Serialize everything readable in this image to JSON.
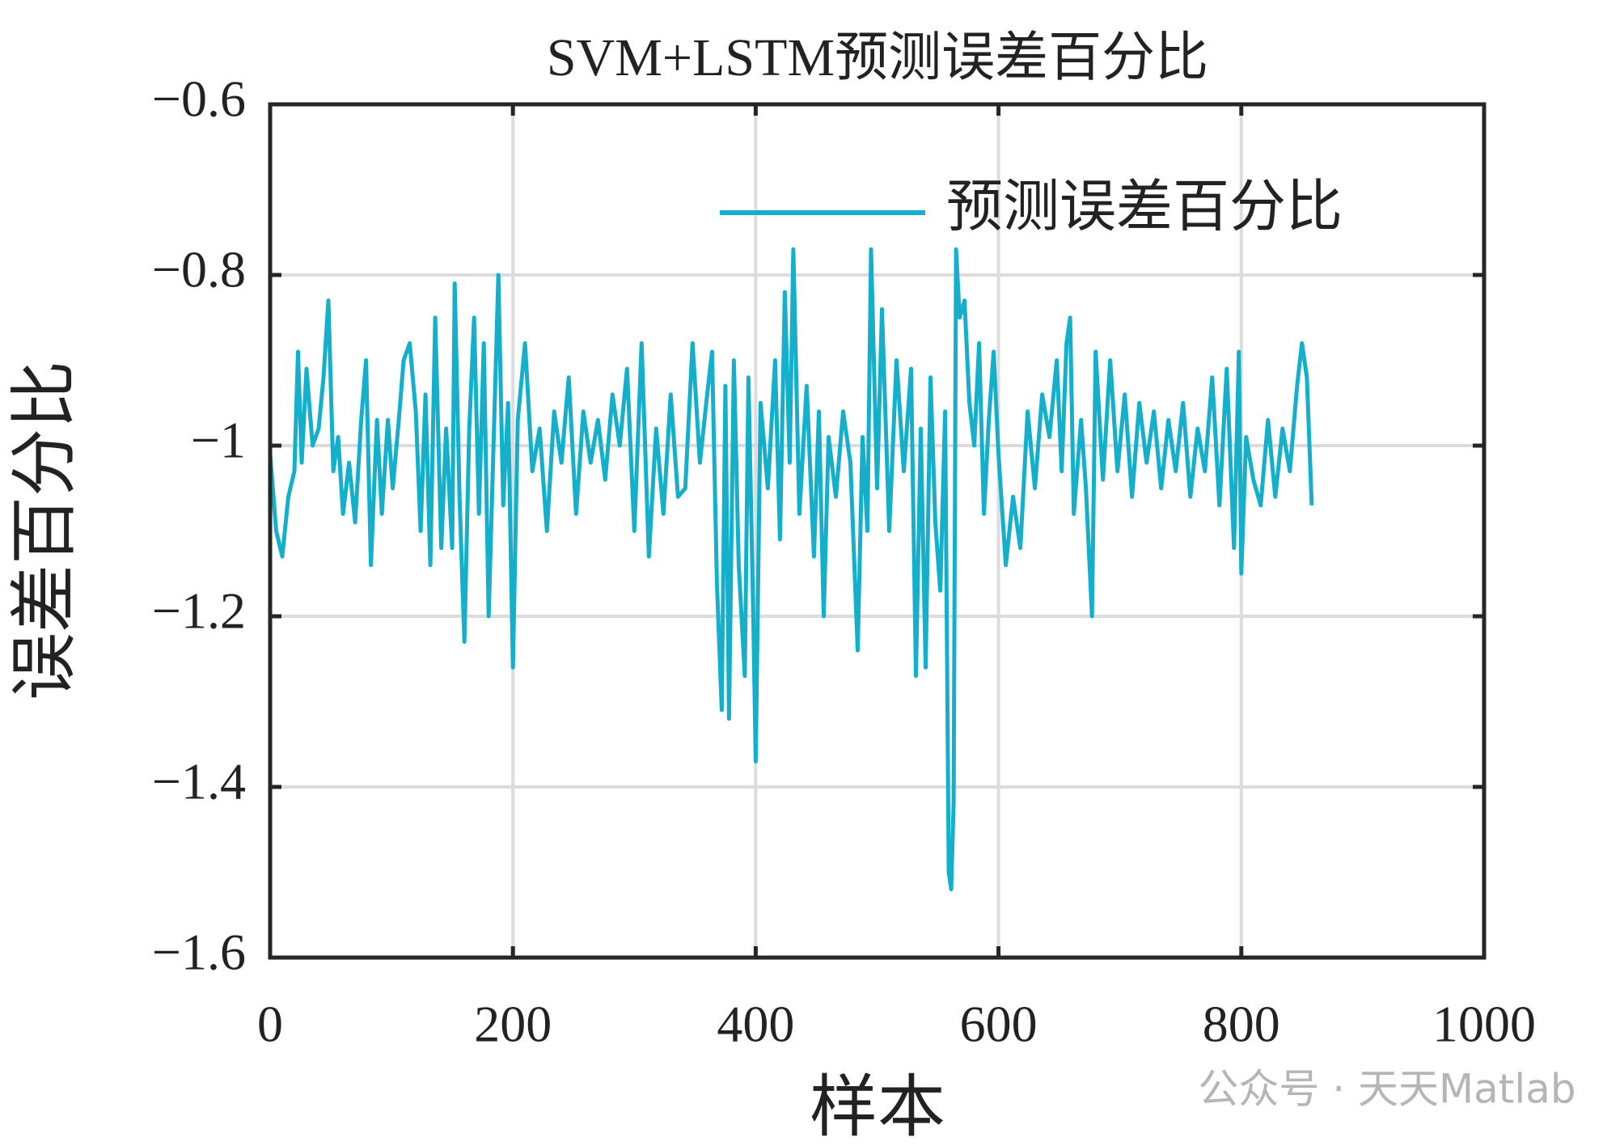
{
  "chart_data": {
    "type": "line",
    "title": "SVM+LSTM预测误差百分比",
    "x_label": "样本",
    "y_label": "误差百分比",
    "watermark": "公众号 · 天天Matlab",
    "legend_position": "upper right",
    "grid": true,
    "xlim": [
      0,
      1000
    ],
    "xticks": [
      0,
      200,
      400,
      600,
      800,
      1000
    ],
    "ylim": [
      -1.6,
      -0.6
    ],
    "yticks": [
      {
        "value": -1.6,
        "label": "−1.6"
      },
      {
        "value": -1.4,
        "label": "−1.4"
      },
      {
        "value": -1.2,
        "label": "−1.2"
      },
      {
        "value": -1,
        "label": "−1"
      },
      {
        "value": -0.8,
        "label": "−0.8"
      },
      {
        "value": -0.6,
        "label": "−0.6"
      }
    ],
    "x": [
      0,
      5,
      10,
      15,
      20,
      23,
      26,
      30,
      35,
      40,
      44,
      48,
      52,
      56,
      60,
      65,
      70,
      75,
      79,
      83,
      88,
      92,
      97,
      101,
      106,
      110,
      115,
      120,
      124,
      128,
      132,
      136,
      141,
      145,
      150,
      152,
      156,
      160,
      164,
      168,
      172,
      176,
      180,
      184,
      188,
      192,
      196,
      200,
      204,
      210,
      216,
      222,
      228,
      234,
      240,
      246,
      252,
      258,
      264,
      270,
      276,
      282,
      288,
      294,
      300,
      306,
      312,
      318,
      324,
      330,
      336,
      342,
      348,
      354,
      360,
      364,
      368,
      372,
      375,
      378,
      382,
      386,
      391,
      394,
      398,
      400,
      404,
      410,
      416,
      420,
      424,
      428,
      431,
      436,
      442,
      448,
      452,
      456,
      460,
      466,
      472,
      478,
      484,
      488,
      492,
      495,
      500,
      504,
      510,
      516,
      522,
      528,
      532,
      536,
      540,
      544,
      548,
      552,
      556,
      559,
      561,
      563,
      565,
      568,
      572,
      576,
      580,
      584,
      588,
      592,
      596,
      600,
      606,
      612,
      618,
      624,
      630,
      636,
      642,
      648,
      652,
      656,
      659,
      662,
      668,
      672,
      677,
      680,
      686,
      692,
      698,
      704,
      710,
      716,
      722,
      728,
      734,
      740,
      746,
      752,
      758,
      764,
      770,
      776,
      782,
      788,
      794,
      798,
      800,
      804,
      810,
      816,
      822,
      828,
      834,
      840,
      846,
      850,
      854,
      858
    ],
    "series": [
      {
        "name": "预测误差百分比",
        "color": "#14b0cb",
        "values": [
          -1.01,
          -1.1,
          -1.13,
          -1.06,
          -1.03,
          -0.89,
          -1.02,
          -0.91,
          -1.0,
          -0.98,
          -0.92,
          -0.83,
          -1.03,
          -0.99,
          -1.08,
          -1.02,
          -1.09,
          -0.97,
          -0.9,
          -1.14,
          -0.97,
          -1.08,
          -0.97,
          -1.05,
          -0.97,
          -0.9,
          -0.88,
          -0.96,
          -1.1,
          -0.94,
          -1.14,
          -0.85,
          -1.12,
          -0.98,
          -1.12,
          -0.81,
          -1.06,
          -1.23,
          -0.98,
          -0.85,
          -1.08,
          -0.88,
          -1.2,
          -1.0,
          -0.8,
          -1.07,
          -0.95,
          -1.26,
          -0.97,
          -0.88,
          -1.03,
          -0.98,
          -1.1,
          -0.96,
          -1.02,
          -0.92,
          -1.08,
          -0.96,
          -1.02,
          -0.97,
          -1.04,
          -0.94,
          -1.0,
          -0.91,
          -1.1,
          -0.88,
          -1.13,
          -0.98,
          -1.08,
          -0.94,
          -1.06,
          -1.05,
          -0.88,
          -1.02,
          -0.94,
          -0.89,
          -1.16,
          -1.31,
          -0.93,
          -1.32,
          -0.9,
          -1.14,
          -1.27,
          -0.92,
          -1.2,
          -1.37,
          -0.95,
          -1.05,
          -0.9,
          -1.11,
          -0.82,
          -1.02,
          -0.77,
          -1.08,
          -0.93,
          -1.13,
          -0.96,
          -1.2,
          -0.99,
          -1.06,
          -0.96,
          -1.02,
          -1.24,
          -0.99,
          -1.1,
          -0.77,
          -1.05,
          -0.84,
          -1.1,
          -0.9,
          -1.03,
          -0.91,
          -1.27,
          -0.98,
          -1.26,
          -0.92,
          -1.09,
          -1.17,
          -0.96,
          -1.5,
          -1.52,
          -1.42,
          -0.77,
          -0.85,
          -0.83,
          -0.95,
          -1.0,
          -0.88,
          -1.08,
          -0.97,
          -0.89,
          -1.01,
          -1.14,
          -1.06,
          -1.12,
          -0.96,
          -1.05,
          -0.94,
          -0.99,
          -0.9,
          -1.03,
          -0.88,
          -0.85,
          -1.08,
          -0.97,
          -1.05,
          -1.2,
          -0.89,
          -1.04,
          -0.9,
          -1.03,
          -0.94,
          -1.06,
          -0.95,
          -1.02,
          -0.96,
          -1.05,
          -0.97,
          -1.03,
          -0.95,
          -1.06,
          -0.98,
          -1.03,
          -0.92,
          -1.07,
          -0.91,
          -1.12,
          -0.89,
          -1.15,
          -0.99,
          -1.04,
          -1.07,
          -0.97,
          -1.06,
          -0.98,
          -1.03,
          -0.93,
          -0.88,
          -0.92,
          -1.07
        ]
      }
    ]
  }
}
